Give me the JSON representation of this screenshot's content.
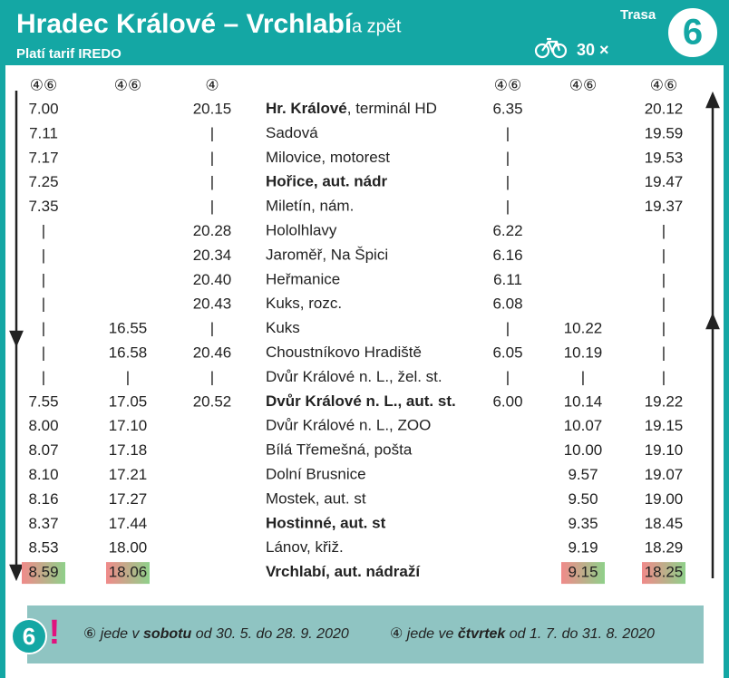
{
  "header": {
    "title": "Hradec Králové – Vrchlabí",
    "subtitle": "a zpět",
    "tariff": "Platí tarif IREDO",
    "route_label": "Trasa",
    "route_number": "6",
    "bikes": "30 ×"
  },
  "table": {
    "header": [
      "④⑥",
      "④⑥",
      "④",
      null,
      "④⑥",
      "④⑥",
      "④⑥"
    ],
    "rows": [
      [
        "7.00",
        null,
        "20.15",
        {
          "bold": "Hr. Králové",
          "text": ", terminál HD"
        },
        "6.35",
        null,
        "20.12"
      ],
      [
        "7.11",
        null,
        "|",
        {
          "text": "Sadová"
        },
        "|",
        null,
        "19.59"
      ],
      [
        "7.17",
        null,
        "|",
        {
          "text": "Milovice, motorest"
        },
        "|",
        null,
        "19.53"
      ],
      [
        "7.25",
        null,
        "|",
        {
          "bold": "Hořice, aut. nádr"
        },
        "|",
        null,
        "19.47"
      ],
      [
        "7.35",
        null,
        "|",
        {
          "text": "Miletín, nám."
        },
        "|",
        null,
        "19.37"
      ],
      [
        "|",
        null,
        "20.28",
        {
          "text": "Hololhlavy"
        },
        "6.22",
        null,
        "|"
      ],
      [
        "|",
        null,
        "20.34",
        {
          "text": "Jaroměř, Na Špici"
        },
        "6.16",
        null,
        "|"
      ],
      [
        "|",
        null,
        "20.40",
        {
          "text": "Heřmanice"
        },
        "6.11",
        null,
        "|"
      ],
      [
        "|",
        null,
        "20.43",
        {
          "text": "Kuks, rozc."
        },
        "6.08",
        null,
        "|"
      ],
      [
        "|",
        "16.55",
        "|",
        {
          "text": "Kuks"
        },
        "|",
        "10.22",
        "|"
      ],
      [
        "|",
        "16.58",
        "20.46",
        {
          "text": "Choustníkovo Hradiště"
        },
        "6.05",
        "10.19",
        "|"
      ],
      [
        "|",
        "|",
        "|",
        {
          "text": "Dvůr Králové n. L., žel. st."
        },
        "|",
        "|",
        "|"
      ],
      [
        "7.55",
        "17.05",
        "20.52",
        {
          "bold": "Dvůr Králové n. L., aut. st."
        },
        "6.00",
        "10.14",
        "19.22"
      ],
      [
        "8.00",
        "17.10",
        null,
        {
          "text": "Dvůr Králové n. L., ZOO"
        },
        null,
        "10.07",
        "19.15"
      ],
      [
        "8.07",
        "17.18",
        null,
        {
          "text": "Bílá Třemešná, pošta"
        },
        null,
        "10.00",
        "19.10"
      ],
      [
        "8.10",
        "17.21",
        null,
        {
          "text": "Dolní Brusnice"
        },
        null,
        "9.57",
        "19.07"
      ],
      [
        "8.16",
        "17.27",
        null,
        {
          "text": "Mostek, aut. st"
        },
        null,
        "9.50",
        "19.00"
      ],
      [
        "8.37",
        "17.44",
        null,
        {
          "bold": "Hostinné, aut. st"
        },
        null,
        "9.35",
        "18.45"
      ],
      [
        "8.53",
        "18.00",
        null,
        {
          "text": "Lánov, křiž."
        },
        null,
        "9.19",
        "18.29"
      ],
      [
        "8.59",
        "18.06",
        null,
        {
          "bold": "Vrchlabí, aut. nádraží"
        },
        null,
        "9.15",
        "18.25"
      ]
    ]
  },
  "notes": {
    "icon_number": "6",
    "icon_mark": "!",
    "items": [
      {
        "symbol": "⑥",
        "pre": "jede v",
        "bold": "sobotu",
        "post": "od 30. 5. do 28. 9. 2020"
      },
      {
        "symbol": "④",
        "pre": "jede ve",
        "bold": "čtvrtek",
        "post": "od 1. 7. do 31. 8. 2020"
      }
    ]
  }
}
